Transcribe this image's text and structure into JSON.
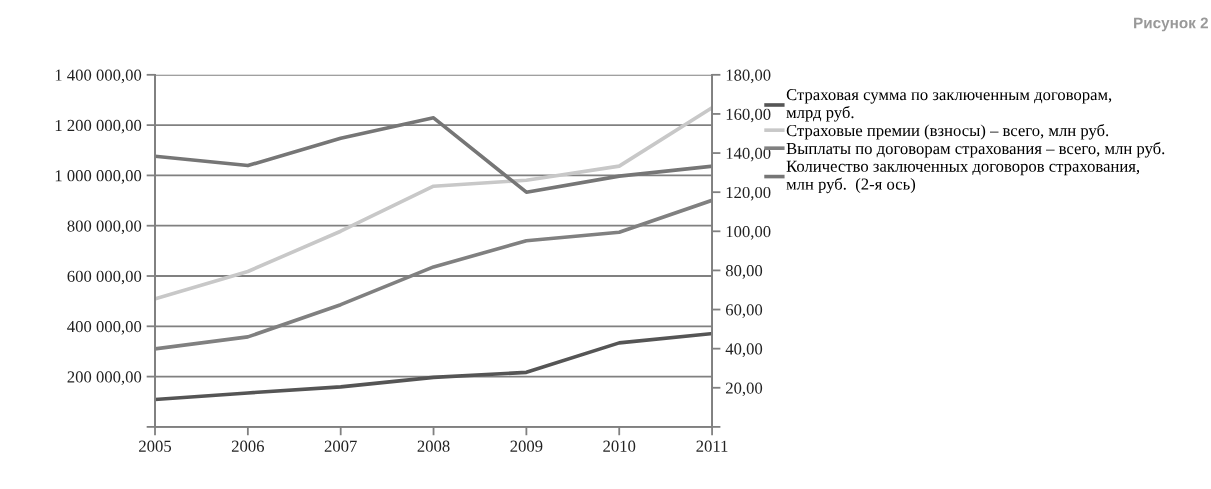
{
  "chart_data": {
    "type": "line",
    "title": "Рисунок 2",
    "categories": [
      "2005",
      "2006",
      "2007",
      "2008",
      "2009",
      "2010",
      "2011"
    ],
    "series": [
      {
        "name": "Страховая сумма по заключенным договорам,\nмлрд руб.",
        "color": "#555555",
        "values": [
          109000,
          135000,
          159000,
          197000,
          217000,
          334000,
          371000
        ]
      },
      {
        "name": "Страховые премии (взносы) – всего, млн руб.",
        "color": "#c8c8c8",
        "values": [
          509000,
          618000,
          778000,
          957000,
          981000,
          1037000,
          1269000
        ]
      },
      {
        "name": "Выплаты по договорам страхования – всего, млн руб.",
        "color": "#808080",
        "values": [
          310000,
          358000,
          486000,
          636000,
          740000,
          774000,
          901000
        ]
      },
      {
        "name": "Количество заключенных договоров страхования,\nмлн руб.  (2-я ось)",
        "color": "#767676",
        "axis": "y2",
        "values": [
          138.4,
          133.6,
          147.6,
          158.0,
          120.0,
          128.2,
          133.3
        ]
      }
    ],
    "ylim": [
      0,
      1400000
    ],
    "yticks": [
      {
        "value": 0,
        "label": null
      },
      {
        "value": 200000,
        "label": "200 000,00"
      },
      {
        "value": 400000,
        "label": "400 000,00"
      },
      {
        "value": 600000,
        "label": "600 000,00"
      },
      {
        "value": 800000,
        "label": "800 000,00"
      },
      {
        "value": 1000000,
        "label": "1 000 000,00"
      },
      {
        "value": 1200000,
        "label": "1 200 000,00"
      },
      {
        "value": 1400000,
        "label": "1 400 000,00"
      }
    ],
    "y2lim": [
      0,
      180
    ],
    "y2ticks": [
      {
        "value": 0,
        "label": null
      },
      {
        "value": 20,
        "label": "20,00"
      },
      {
        "value": 40,
        "label": "40,00"
      },
      {
        "value": 60,
        "label": "60,00"
      },
      {
        "value": 80,
        "label": "80,00"
      },
      {
        "value": 100,
        "label": "100,00"
      },
      {
        "value": 120,
        "label": "120,00"
      },
      {
        "value": 140,
        "label": "140,00"
      },
      {
        "value": 160,
        "label": "160,00"
      },
      {
        "value": 180,
        "label": "180,00"
      }
    ],
    "grid": "y",
    "legend": "right",
    "marker": "none",
    "line_style": "solid"
  }
}
